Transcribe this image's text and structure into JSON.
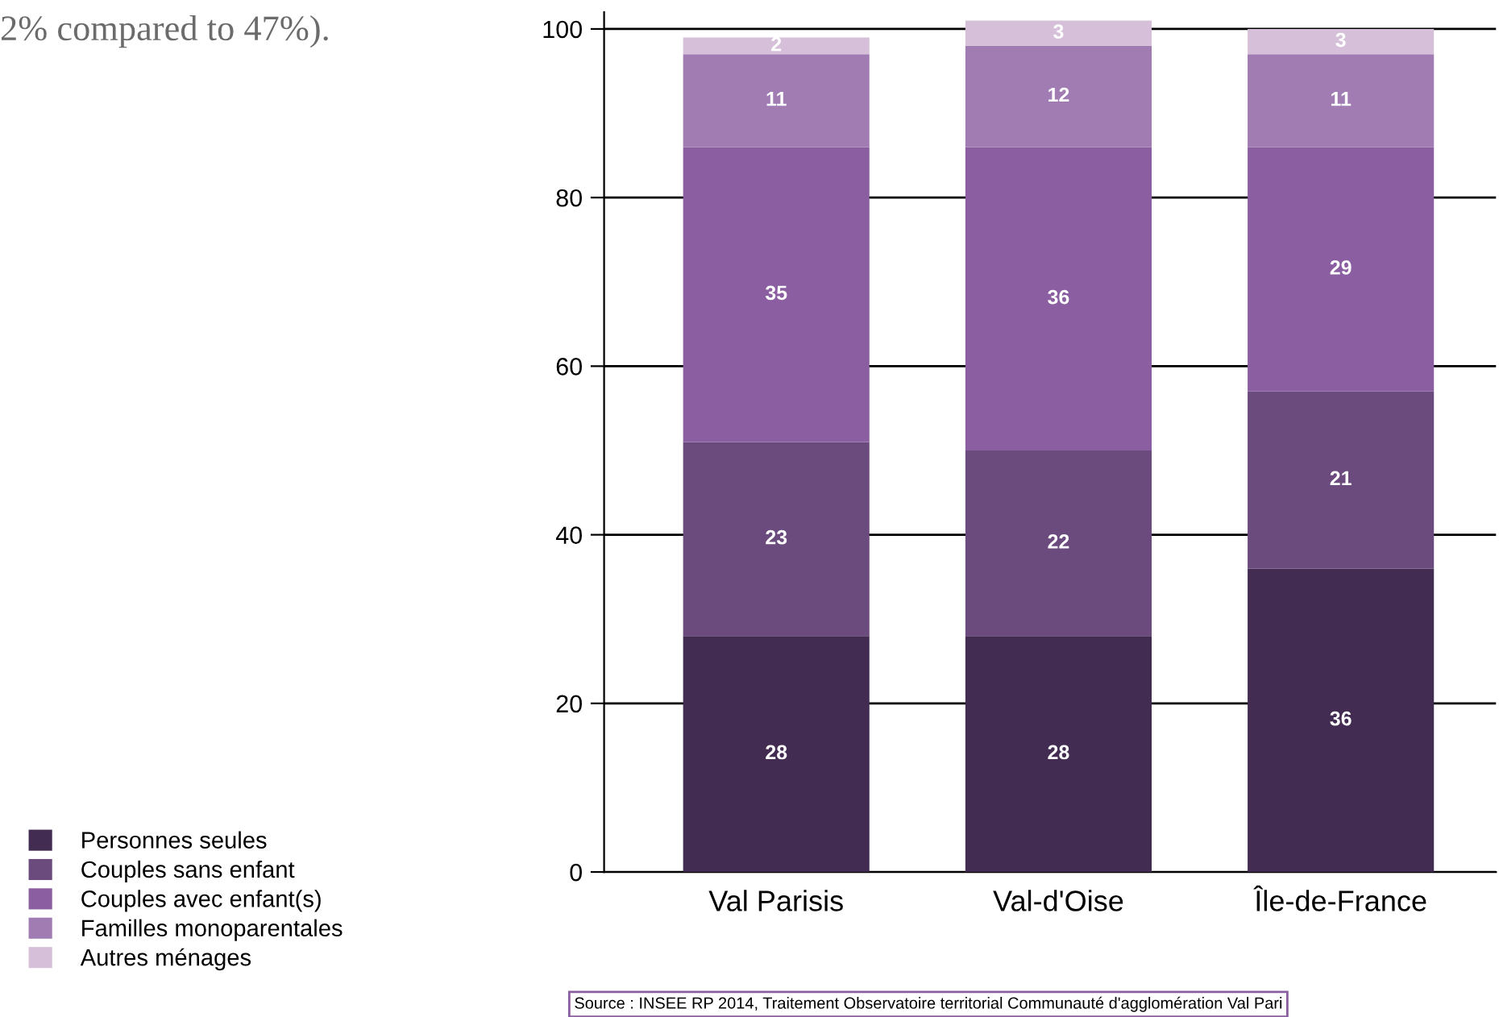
{
  "chart_data": {
    "type": "bar",
    "stacked": true,
    "categories": [
      "Val Parisis",
      "Val-d'Oise",
      "Île-de-France"
    ],
    "series": [
      {
        "name": "Personnes seules",
        "color": "#432c52",
        "values": [
          28,
          28,
          36
        ]
      },
      {
        "name": "Couples sans enfant",
        "color": "#6b4a7d",
        "values": [
          23,
          22,
          21
        ]
      },
      {
        "name": "Couples avec enfant(s)",
        "color": "#8a5ea0",
        "values": [
          35,
          36,
          29
        ]
      },
      {
        "name": "Familles monoparentales",
        "color": "#a17cb3",
        "values": [
          11,
          12,
          11
        ]
      },
      {
        "name": "Autres ménages",
        "color": "#d6bfd9",
        "values": [
          2,
          3,
          3
        ]
      }
    ],
    "ylim": [
      0,
      102
    ],
    "yticks": [
      0,
      20,
      40,
      60,
      80,
      100
    ],
    "grid": "y",
    "legend": "left",
    "data_labels": true,
    "annotations": [
      "2% compared to 47%).",
      "Source : INSEE RP 2014, Traitement Observatoire territorial Communauté d'agglomération Val Pari"
    ]
  }
}
